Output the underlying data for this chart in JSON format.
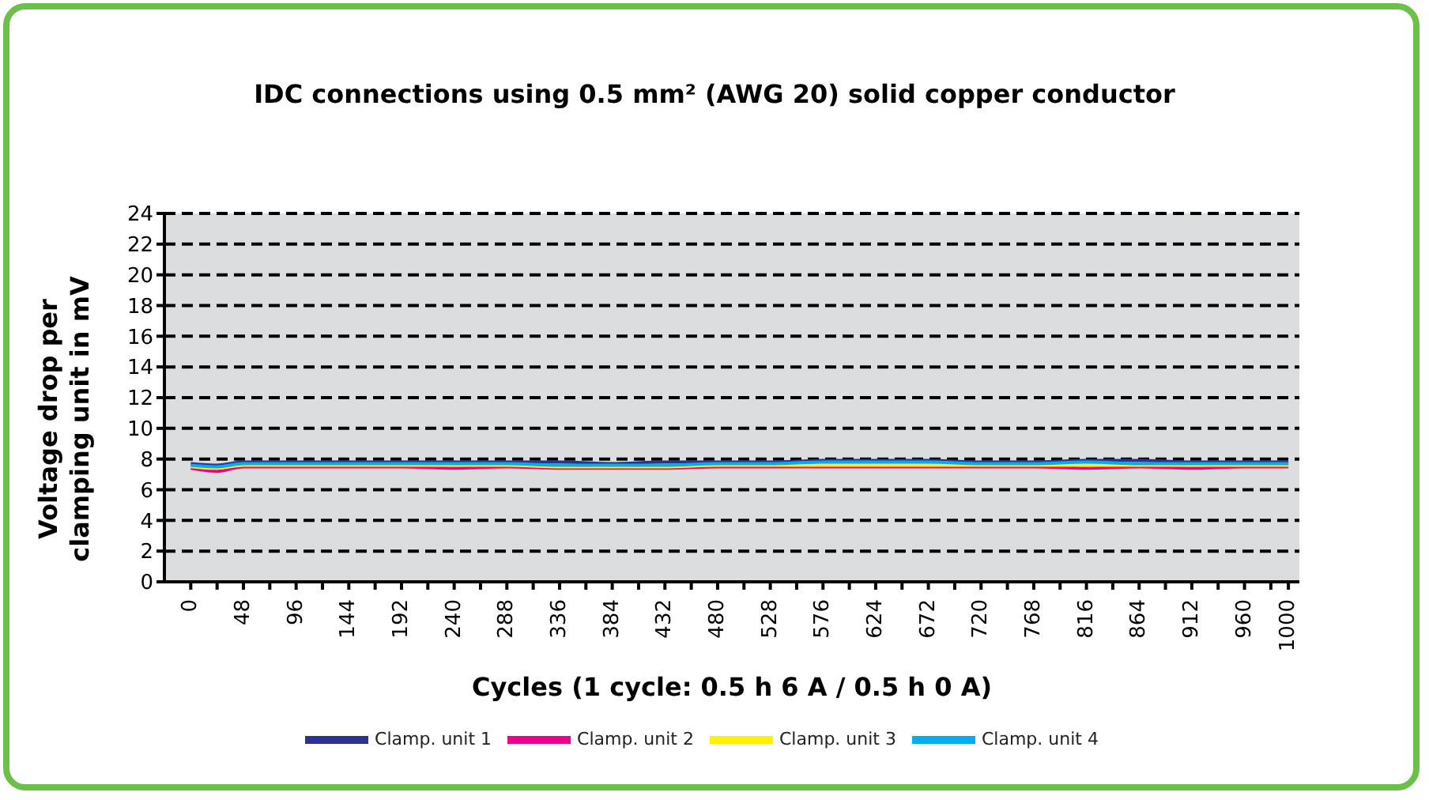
{
  "chart_data": {
    "type": "line",
    "title": "IDC connections using 0.5 mm² (AWG 20) solid copper conductor",
    "xlabel": "Cycles (1 cycle: 0.5 h 6 A / 0.5 h 0 A)",
    "ylabel": "Voltage drop per clamping unit in mV",
    "x": [
      0,
      24,
      48,
      96,
      144,
      192,
      240,
      288,
      336,
      384,
      432,
      480,
      528,
      576,
      624,
      672,
      720,
      768,
      816,
      864,
      912,
      960,
      1000
    ],
    "series": [
      {
        "name": "Clamp. unit 1",
        "color": "#2e3192",
        "values": [
          7.7,
          7.6,
          7.8,
          7.8,
          7.8,
          7.8,
          7.8,
          7.8,
          7.8,
          7.7,
          7.8,
          7.8,
          7.8,
          7.9,
          7.9,
          7.9,
          7.8,
          7.8,
          7.9,
          7.9,
          7.8,
          7.8,
          7.8
        ]
      },
      {
        "name": "Clamp. unit 2",
        "color": "#ec008c",
        "values": [
          7.4,
          7.2,
          7.5,
          7.5,
          7.5,
          7.5,
          7.4,
          7.5,
          7.4,
          7.4,
          7.4,
          7.5,
          7.5,
          7.5,
          7.5,
          7.5,
          7.5,
          7.5,
          7.4,
          7.5,
          7.4,
          7.5,
          7.5
        ]
      },
      {
        "name": "Clamp. unit 3",
        "color": "#fff200",
        "values": [
          7.5,
          7.4,
          7.6,
          7.6,
          7.6,
          7.6,
          7.6,
          7.6,
          7.5,
          7.5,
          7.5,
          7.6,
          7.6,
          7.6,
          7.6,
          7.6,
          7.6,
          7.6,
          7.6,
          7.6,
          7.6,
          7.6,
          7.6
        ]
      },
      {
        "name": "Clamp. unit 4",
        "color": "#00aeef",
        "values": [
          7.6,
          7.5,
          7.7,
          7.7,
          7.7,
          7.7,
          7.7,
          7.7,
          7.6,
          7.6,
          7.6,
          7.7,
          7.7,
          7.8,
          7.8,
          7.8,
          7.7,
          7.7,
          7.8,
          7.7,
          7.7,
          7.7,
          7.7
        ]
      }
    ],
    "xlim": [
      -24,
      1010
    ],
    "xticks": [
      0,
      {
        "value": 24,
        "label": null
      },
      48,
      {
        "value": 72,
        "label": null
      },
      96,
      {
        "value": 120,
        "label": null
      },
      144,
      {
        "value": 168,
        "label": null
      },
      192,
      {
        "value": 216,
        "label": null
      },
      240,
      {
        "value": 264,
        "label": null
      },
      288,
      {
        "value": 312,
        "label": null
      },
      336,
      {
        "value": 360,
        "label": null
      },
      384,
      {
        "value": 408,
        "label": null
      },
      432,
      {
        "value": 456,
        "label": null
      },
      480,
      {
        "value": 504,
        "label": null
      },
      528,
      {
        "value": 552,
        "label": null
      },
      576,
      {
        "value": 600,
        "label": null
      },
      624,
      {
        "value": 648,
        "label": null
      },
      672,
      {
        "value": 696,
        "label": null
      },
      720,
      {
        "value": 744,
        "label": null
      },
      768,
      {
        "value": 792,
        "label": null
      },
      816,
      {
        "value": 840,
        "label": null
      },
      864,
      {
        "value": 888,
        "label": null
      },
      912,
      {
        "value": 936,
        "label": null
      },
      960,
      {
        "value": 984,
        "label": null
      },
      1000
    ],
    "ylim": [
      0,
      24
    ],
    "yticks": [
      0,
      2,
      4,
      6,
      8,
      10,
      12,
      14,
      16,
      18,
      20,
      22,
      24
    ],
    "grid": "y",
    "legend": "bottom",
    "marker": "none",
    "line_style": "solid"
  }
}
